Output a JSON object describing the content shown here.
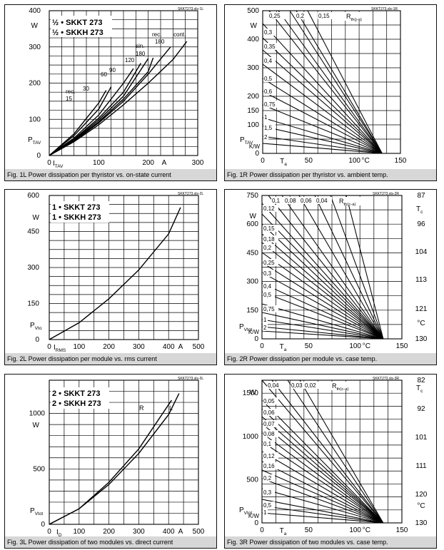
{
  "panels": [
    {
      "id": "1L",
      "box": "p1L",
      "code": "SKKT273.xls-1L",
      "caption": "Fig. 1L Power dissipation per thyristor vs. on-state current",
      "legend": [
        "½ • SKKT 273",
        "½ • SKKH 273"
      ],
      "unit_label": "W",
      "y_symbol": "P",
      "y_symbol_sub": "TAV",
      "x_symbol": "I",
      "x_symbol_sub": "TAV",
      "x_unit": "A",
      "y_ticks": [
        "0",
        "100",
        "200",
        "300",
        "400"
      ],
      "x_ticks": [
        "0",
        "100",
        "200",
        "300"
      ],
      "curve_labels": [
        "rec.",
        "15",
        "30",
        "60",
        "90",
        "120",
        "sin.",
        "180",
        "rec.",
        "180",
        "cont."
      ]
    },
    {
      "id": "1R",
      "box": "p1R",
      "code": "SKKT273.xls-1R",
      "caption": "Fig. 1R Power dissipation per thyristor vs. ambient temp.",
      "y_ticks": [
        "0",
        "100",
        "150",
        "200",
        "300",
        "400",
        "500"
      ],
      "unit_label": "W",
      "y_symbol": "P",
      "y_symbol_sub": "TAV",
      "x_ticks": [
        "0",
        "50",
        "100",
        "150"
      ],
      "x_symbol": "T",
      "x_symbol_sub": "a",
      "x_unit": "°C",
      "rth_label": "R",
      "rth_sub": "th(j-a)",
      "rth_top": [
        "0,25",
        "0,2",
        "0,15"
      ],
      "rth_left": [
        "0,3",
        "0,35",
        "0,4",
        "0,5",
        "0,6",
        "0,75",
        "1",
        "1,5",
        "2"
      ],
      "kw_label": "K/W"
    },
    {
      "id": "2L",
      "box": "p2L",
      "code": "SKKT273.xls-2L",
      "caption": "Fig. 2L Power dissipation per module vs. rms current",
      "legend": [
        "1 • SKKT 273",
        "1 • SKKH 273"
      ],
      "unit_label": "W",
      "y_symbol": "P",
      "y_symbol_sub": "Vto",
      "x_symbol": "I",
      "x_symbol_sub": "RMS",
      "x_unit": "A",
      "y_ticks": [
        "0",
        "150",
        "300",
        "450",
        "600"
      ],
      "x_ticks": [
        "0",
        "100",
        "200",
        "300",
        "400",
        "500"
      ]
    },
    {
      "id": "2R",
      "box": "p2R",
      "code": "SKKT273.xls-2R",
      "caption": "Fig. 2R Power dissipation per module vs. case temp.",
      "y_ticks": [
        "0",
        "150",
        "300",
        "450",
        "600",
        "750"
      ],
      "unit_label": "W",
      "y_symbol": "P",
      "y_symbol_sub": "Vtot",
      "x_ticks": [
        "0",
        "50",
        "100",
        "150"
      ],
      "x_symbol": "T",
      "x_symbol_sub": "a",
      "x_unit": "°C",
      "right_ticks": [
        "87",
        "96",
        "104",
        "113",
        "121",
        "130"
      ],
      "right_symbol": "T",
      "right_symbol_sub": "c",
      "right_unit": "°C",
      "rth_label": "R",
      "rth_sub": "th(c-a)",
      "rth_top": [
        "0,1",
        "0,08",
        "0,06",
        "0,04"
      ],
      "rth_left": [
        "0,12",
        "0,15",
        "0,18",
        "0,2",
        "0,25",
        "0,3",
        "0,4",
        "0,5",
        "0,75",
        "1",
        "2"
      ],
      "kw_label": "K/W"
    },
    {
      "id": "3L",
      "box": "p3L",
      "code": "SKKT273.xls-3L",
      "caption": "Fig. 3L Power dissipation of two modules vs. direct current",
      "legend": [
        "2 • SKKT 273",
        "2 • SKKH 273"
      ],
      "unit_label": "W",
      "y_symbol": "P",
      "y_symbol_sub": "Vtot",
      "x_symbol": "I",
      "x_symbol_sub": "D",
      "x_unit": "A",
      "y_ticks": [
        "0",
        "500",
        "1000"
      ],
      "x_ticks": [
        "0",
        "100",
        "200",
        "300",
        "400",
        "500"
      ],
      "curve_labels": [
        "R",
        "L"
      ]
    },
    {
      "id": "3R",
      "box": "p3R",
      "code": "SKKT273.xls-3R",
      "caption": "Fig. 3R Power dissipation of two modules vs. case temp.",
      "y_ticks": [
        "0",
        "500",
        "1000",
        "1500"
      ],
      "unit_label": "W",
      "y_symbol": "P",
      "y_symbol_sub": "Vtot",
      "x_ticks": [
        "0",
        "50",
        "100",
        "150"
      ],
      "x_symbol": "T",
      "x_symbol_sub": "a",
      "x_unit": "°C",
      "right_ticks": [
        "82",
        "92",
        "101",
        "111",
        "120",
        "130"
      ],
      "right_symbol": "T",
      "right_symbol_sub": "c",
      "right_unit": "°C",
      "rth_label": "R",
      "rth_sub": "th(c-a)",
      "rth_top": [
        "0,04",
        "0,03",
        "0,02"
      ],
      "rth_left": [
        "0,05",
        "0,06",
        "0,07",
        "0,08",
        "0,1",
        "0,12",
        "0,16",
        "0,2",
        "0,3",
        "0,5",
        "1"
      ],
      "kw_label": "K/W"
    }
  ],
  "chart_data": [
    {
      "type": "line",
      "panel": "1L",
      "title": "Fig. 1L Power dissipation per thyristor vs. on-state current",
      "xlabel": "I_TAV (A)",
      "ylabel": "P_TAV (W)",
      "xlim": [
        0,
        300
      ],
      "ylim": [
        0,
        400
      ],
      "grid": true,
      "legend_placement": "top-left",
      "series": [
        {
          "name": "rec. 15",
          "x": [
            0,
            50,
            100,
            115
          ],
          "y": [
            0,
            60,
            145,
            180
          ]
        },
        {
          "name": "30",
          "x": [
            0,
            50,
            100,
            125
          ],
          "y": [
            0,
            55,
            128,
            190
          ]
        },
        {
          "name": "60",
          "x": [
            0,
            50,
            100,
            150,
            170
          ],
          "y": [
            0,
            48,
            112,
            200,
            240
          ]
        },
        {
          "name": "90",
          "x": [
            0,
            50,
            100,
            150,
            185
          ],
          "y": [
            0,
            45,
            103,
            175,
            255
          ]
        },
        {
          "name": "120",
          "x": [
            0,
            50,
            100,
            150,
            200
          ],
          "y": [
            0,
            43,
            98,
            164,
            268
          ]
        },
        {
          "name": "sin. 180",
          "x": [
            0,
            50,
            100,
            150,
            200,
            210
          ],
          "y": [
            0,
            41,
            93,
            156,
            232,
            270
          ]
        },
        {
          "name": "rec. 180",
          "x": [
            0,
            50,
            100,
            150,
            200,
            245
          ],
          "y": [
            0,
            40,
            90,
            150,
            225,
            300
          ]
        },
        {
          "name": "cont.",
          "x": [
            0,
            50,
            100,
            150,
            200,
            250,
            278
          ],
          "y": [
            0,
            38,
            85,
            140,
            200,
            265,
            315
          ]
        }
      ]
    },
    {
      "type": "line",
      "panel": "1R",
      "title": "Fig. 1R Power dissipation per thyristor vs. ambient temp.",
      "xlabel": "T_a (°C)",
      "ylabel": "P_TAV (W)",
      "xlim": [
        0,
        150
      ],
      "ylim": [
        0,
        500
      ],
      "grid": true,
      "note": "straight lines converging at T = 130 °C, P = 0",
      "series_rth": [
        "0,15",
        "0,2",
        "0,25",
        "0,3",
        "0,35",
        "0,4",
        "0,5",
        "0,6",
        "0,75",
        "1",
        "1,5",
        "2"
      ]
    },
    {
      "type": "line",
      "panel": "2L",
      "title": "Fig. 2L Power dissipation per module vs. rms current",
      "xlabel": "I_RMS (A)",
      "ylabel": "P_Vto (W)",
      "xlim": [
        0,
        500
      ],
      "ylim": [
        0,
        600
      ],
      "grid": true,
      "series": [
        {
          "name": "1 • SKKT 273",
          "x": [
            0,
            100,
            200,
            300,
            400,
            440
          ],
          "y": [
            0,
            70,
            170,
            290,
            440,
            550
          ]
        }
      ]
    },
    {
      "type": "line",
      "panel": "2R",
      "title": "Fig. 2R Power dissipation per module vs. case temp.",
      "xlabel": "T_a (°C)",
      "ylabel": "P_Vtot (W)",
      "xlim": [
        0,
        150
      ],
      "ylim": [
        0,
        750
      ],
      "grid": true,
      "note": "straight lines converging at T = 130 °C, P = 0",
      "series_rth": [
        "0,04",
        "0,06",
        "0,08",
        "0,1",
        "0,12",
        "0,15",
        "0,18",
        "0,2",
        "0,25",
        "0,3",
        "0,4",
        "0,5",
        "0,75",
        "1",
        "2"
      ]
    },
    {
      "type": "line",
      "panel": "3L",
      "title": "Fig. 3L Power dissipation of two modules vs. direct current",
      "xlabel": "I_D (A)",
      "ylabel": "P_Vtot (W)",
      "xlim": [
        0,
        500
      ],
      "ylim": [
        0,
        1300
      ],
      "grid": true,
      "series": [
        {
          "name": "R",
          "x": [
            0,
            100,
            200,
            300,
            400,
            410
          ],
          "y": [
            0,
            140,
            380,
            680,
            1080,
            1120
          ]
        },
        {
          "name": "L",
          "x": [
            0,
            100,
            200,
            300,
            400,
            435
          ],
          "y": [
            0,
            140,
            360,
            640,
            990,
            1180
          ]
        }
      ]
    },
    {
      "type": "line",
      "panel": "3R",
      "title": "Fig. 3R Power dissipation of two modules vs. case temp.",
      "xlabel": "T_a (°C)",
      "ylabel": "P_Vtot (W)",
      "xlim": [
        0,
        150
      ],
      "ylim": [
        0,
        1650
      ],
      "grid": true,
      "note": "straight lines converging at T = 130 °C, P = 0",
      "series_rth": [
        "0,02",
        "0,03",
        "0,04",
        "0,05",
        "0,06",
        "0,07",
        "0,08",
        "0,1",
        "0,12",
        "0,16",
        "0,2",
        "0,3",
        "0,5",
        "1"
      ]
    }
  ]
}
